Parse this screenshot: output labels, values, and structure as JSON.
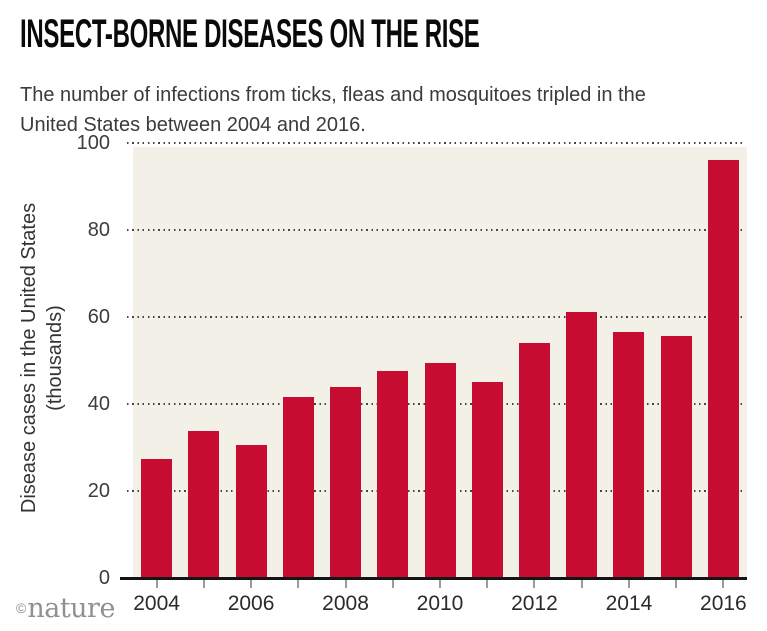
{
  "header": {
    "title": "INSECT-BORNE DISEASES ON THE RISE",
    "subtitle_line1": "The number of infections from ticks, fleas and mosquitoes tripled in the",
    "subtitle_line2": "United States between 2004 and 2016."
  },
  "footer": {
    "copyright_symbol": "©",
    "brand": "nature"
  },
  "chart_data": {
    "type": "bar",
    "title": "INSECT-BORNE DISEASES ON THE RISE",
    "subtitle": "The number of infections from ticks, fleas and mosquitoes tripled in the United States between 2004 and 2016.",
    "categories": [
      2004,
      2005,
      2006,
      2007,
      2008,
      2009,
      2010,
      2011,
      2012,
      2013,
      2014,
      2015,
      2016
    ],
    "values": [
      27.3,
      33.9,
      30.5,
      41.5,
      43.8,
      47.5,
      49.4,
      45.1,
      54.1,
      61.2,
      56.5,
      55.7,
      96.1
    ],
    "xlabel": "",
    "ylabel_line1": "Disease cases in the United States",
    "ylabel_line2": "(thousands)",
    "ylim": [
      0,
      100
    ],
    "yticks": [
      0,
      20,
      40,
      60,
      80,
      100
    ],
    "xtick_labels": [
      "2004",
      "2006",
      "2008",
      "2010",
      "2012",
      "2014",
      "2016"
    ],
    "grid": "horizontal-dotted",
    "legend": "none",
    "bar_color": "#c60c30",
    "plot_bg_color": "#f3f1e7",
    "axis_color": "#141414",
    "grid_color": "#454545"
  }
}
